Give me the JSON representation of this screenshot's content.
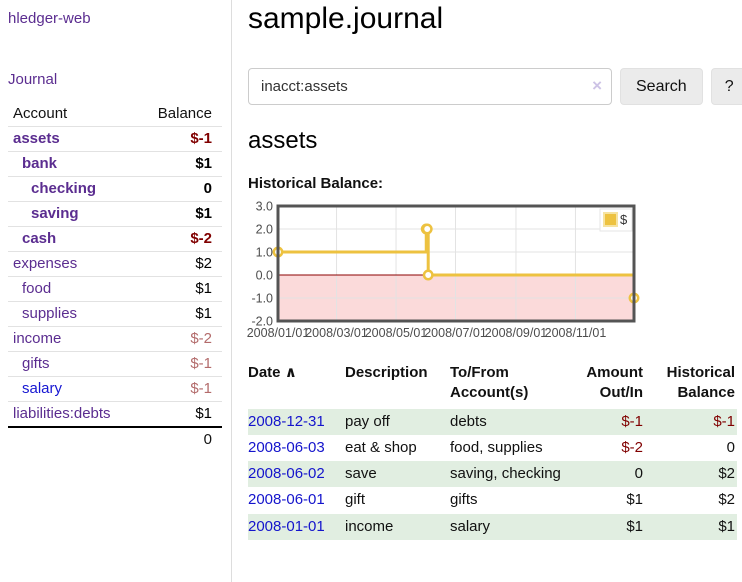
{
  "colors": {
    "link_purple": "#5b2d90",
    "link_blue": "#1414cc",
    "negative_red": "#800000",
    "negative_dim_red": "#b36b6b",
    "row_green": "#e1eee1",
    "chart_line_yellow": "#edc240",
    "chart_negative_region_pink": "#fbdada",
    "chart_zero_line": "#8b0000",
    "chart_border": "#545454",
    "chart_grid": "#e3e3e3"
  },
  "sidebar": {
    "brand": "hledger-web",
    "nav": [
      {
        "label": "Journal"
      }
    ],
    "accounts_table": {
      "headers": {
        "account": "Account",
        "balance": "Balance"
      },
      "rows": [
        {
          "name": "assets",
          "depth": 1,
          "bold": true,
          "balance": "$-1",
          "balance_style": "neg-bold"
        },
        {
          "name": "bank",
          "depth": 2,
          "bold": true,
          "balance": "$1",
          "balance_style": "pos-bold"
        },
        {
          "name": "checking",
          "depth": 3,
          "bold": true,
          "balance": "0",
          "balance_style": "pos-bold"
        },
        {
          "name": "saving",
          "depth": 3,
          "bold": true,
          "balance": "$1",
          "balance_style": "pos-bold"
        },
        {
          "name": "cash",
          "depth": 2,
          "bold": true,
          "balance": "$-2",
          "balance_style": "neg-bold"
        },
        {
          "name": "expenses",
          "depth": 1,
          "bold": false,
          "balance": "$2",
          "balance_style": "pos"
        },
        {
          "name": "food",
          "depth": 2,
          "bold": false,
          "balance": "$1",
          "balance_style": "pos"
        },
        {
          "name": "supplies",
          "depth": 2,
          "bold": false,
          "balance": "$1",
          "balance_style": "pos"
        },
        {
          "name": "income",
          "depth": 1,
          "bold": false,
          "balance": "$-2",
          "balance_style": "neg-dim"
        },
        {
          "name": "gifts",
          "depth": 2,
          "bold": false,
          "balance": "$-1",
          "balance_style": "neg-dim"
        },
        {
          "name": "salary",
          "depth": 2,
          "bold": false,
          "link_color": "blue",
          "balance": "$-1",
          "balance_style": "neg-dim"
        },
        {
          "name": "liabilities:debts",
          "depth": 1,
          "bold": false,
          "balance": "$1",
          "balance_style": "pos"
        }
      ],
      "total": "0"
    }
  },
  "header": {
    "title": "sample.journal"
  },
  "search": {
    "value": "inacct:assets",
    "clear_icon": "×",
    "search_label": "Search",
    "help_label": "?"
  },
  "account_page": {
    "title": "assets",
    "chart_label": "Historical Balance:"
  },
  "chart_data": {
    "type": "line",
    "title": "Historical Balance:",
    "steps": true,
    "series": [
      {
        "name": "$",
        "color": "#edc240",
        "points": [
          [
            "2008-01-01",
            1
          ],
          [
            "2008-06-01",
            2
          ],
          [
            "2008-06-02",
            2
          ],
          [
            "2008-06-03",
            0
          ],
          [
            "2008-12-31",
            -1
          ]
        ]
      }
    ],
    "xlim": [
      "2008-01-01",
      "2008-12-31"
    ],
    "ylim": [
      -2,
      3
    ],
    "x_ticks": [
      {
        "date": "2008-01-01",
        "label": "2008/01/01"
      },
      {
        "date": "2008-03-01",
        "label": "2008/03/01"
      },
      {
        "date": "2008-05-01",
        "label": "2008/05/01"
      },
      {
        "date": "2008-07-01",
        "label": "2008/07/01"
      },
      {
        "date": "2008-09-01",
        "label": "2008/09/01"
      },
      {
        "date": "2008-11-01",
        "label": "2008/11/01"
      }
    ],
    "y_ticks": [
      "3.0",
      "2.0",
      "1.0",
      "0.0",
      "-1.0",
      "-2.0"
    ],
    "grid": true,
    "legend": {
      "label": "$",
      "position": "top-right"
    },
    "negative_region_shaded": true
  },
  "register": {
    "headers": {
      "date": "Date",
      "date_sort_icon": "∧",
      "description": "Description",
      "accounts": "To/From Account(s)",
      "amount": "Amount Out/In",
      "balance": "Historical Balance"
    },
    "rows": [
      {
        "date": "2008-12-31",
        "description": "pay off",
        "accounts": "debts",
        "amount": "$-1",
        "amount_negative": true,
        "balance": "$-1",
        "balance_negative": true
      },
      {
        "date": "2008-06-03",
        "description": "eat & shop",
        "accounts": "food, supplies",
        "amount": "$-2",
        "amount_negative": true,
        "balance": "0",
        "balance_negative": false
      },
      {
        "date": "2008-06-02",
        "description": "save",
        "accounts": "saving, checking",
        "amount": "0",
        "amount_negative": false,
        "balance": "$2",
        "balance_negative": false
      },
      {
        "date": "2008-06-01",
        "description": "gift",
        "accounts": "gifts",
        "amount": "$1",
        "amount_negative": false,
        "balance": "$2",
        "balance_negative": false
      },
      {
        "date": "2008-01-01",
        "description": "income",
        "accounts": "salary",
        "amount": "$1",
        "amount_negative": false,
        "balance": "$1",
        "balance_negative": false
      }
    ]
  }
}
